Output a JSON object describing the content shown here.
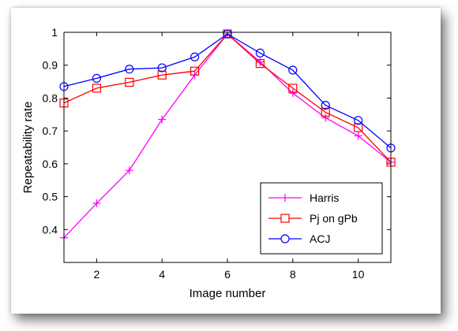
{
  "chart_data": {
    "type": "line",
    "title": "",
    "xlabel": "Image number",
    "ylabel": "Repeatability rate",
    "xlim": [
      1,
      11
    ],
    "ylim": [
      0.3,
      1.0
    ],
    "x": [
      1,
      2,
      3,
      4,
      5,
      6,
      7,
      8,
      9,
      10,
      11
    ],
    "x_ticks": [
      "2",
      "4",
      "6",
      "8",
      "10"
    ],
    "y_ticks": [
      "0.4",
      "0.5",
      "0.6",
      "0.7",
      "0.8",
      "0.9",
      "1"
    ],
    "grid": false,
    "legend_position": "bottom-right",
    "series": [
      {
        "name": "Harris",
        "color": "#ff00ff",
        "marker": "plus",
        "values": [
          0.375,
          0.48,
          0.58,
          0.735,
          0.87,
          0.995,
          0.91,
          0.815,
          0.74,
          0.685,
          0.605
        ]
      },
      {
        "name": "Pj on gPb",
        "color": "#ff0000",
        "marker": "square",
        "values": [
          0.785,
          0.83,
          0.848,
          0.87,
          0.882,
          0.995,
          0.905,
          0.83,
          0.757,
          0.71,
          0.605
        ]
      },
      {
        "name": "ACJ",
        "color": "#0000ff",
        "marker": "circle",
        "values": [
          0.835,
          0.86,
          0.888,
          0.892,
          0.925,
          0.995,
          0.937,
          0.885,
          0.778,
          0.732,
          0.648
        ]
      }
    ]
  }
}
